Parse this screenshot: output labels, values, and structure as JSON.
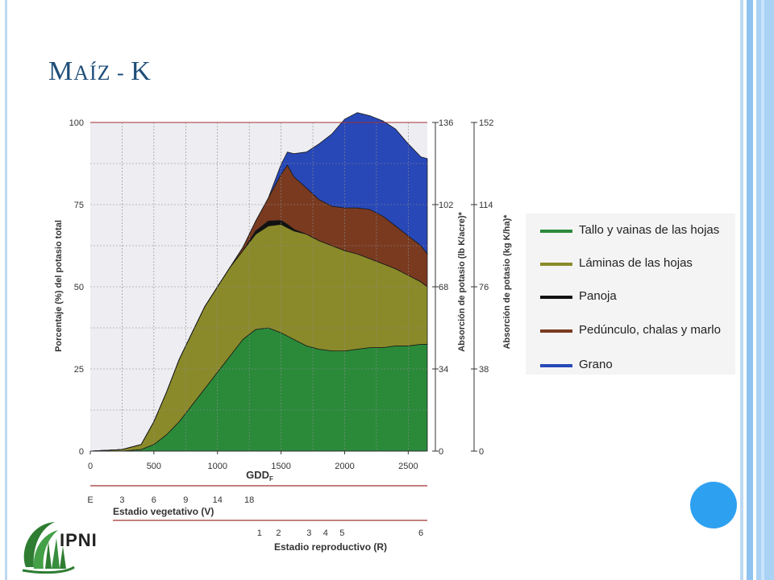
{
  "slide": {
    "title_first": "M",
    "title_sc": "AÍZ - ",
    "title_last": "K"
  },
  "chart_data": {
    "type": "area",
    "stacked": true,
    "xlabel": "GDD",
    "xlabel_sub": "F",
    "ylabel_left": "Porcentaje (%) del potasio total",
    "ylabel_right1": "Absorción de potasio (lb K/acre)*",
    "ylabel_right2": "Absorción de potasio (kg K/ha)*",
    "xlim": [
      0,
      2650
    ],
    "ylim": [
      0,
      100
    ],
    "x_ticks": [
      "0",
      "500",
      "1000",
      "1500",
      "2000",
      "2500"
    ],
    "y_ticks_left": [
      "0",
      "25",
      "50",
      "75",
      "100"
    ],
    "y_ticks_right1": [
      "0",
      "34",
      "68",
      "102",
      "136"
    ],
    "y_ticks_right2": [
      "0",
      "38",
      "76",
      "114",
      "152"
    ],
    "grid": true,
    "x": [
      0,
      250,
      400,
      500,
      600,
      700,
      800,
      900,
      1000,
      1100,
      1200,
      1300,
      1400,
      1500,
      1550,
      1600,
      1700,
      1800,
      1900,
      2000,
      2100,
      2200,
      2300,
      2400,
      2500,
      2600,
      2650
    ],
    "series": [
      {
        "name": "Tallo y vainas de las hojas",
        "color": "#2a8a3a",
        "values": [
          0,
          0,
          0.5,
          2,
          5,
          9,
          14,
          19,
          24,
          29,
          34,
          37,
          37.5,
          36,
          35,
          34,
          32,
          31,
          30.5,
          30.5,
          31,
          31.5,
          31.5,
          32,
          32,
          32.5,
          32.5
        ]
      },
      {
        "name": "Láminas de las hojas",
        "color": "#8a8a2a",
        "values": [
          0,
          0.5,
          1.5,
          7,
          13,
          19,
          22,
          25,
          26,
          27,
          27,
          29,
          31,
          33,
          33,
          33,
          34,
          33,
          32,
          30.5,
          29,
          27,
          25.5,
          23.5,
          21.5,
          19,
          17.5
        ]
      },
      {
        "name": "Panoja",
        "color": "#111111",
        "values": [
          0,
          0,
          0,
          0,
          0,
          0,
          0,
          0,
          0,
          0,
          0,
          1,
          1.5,
          1.2,
          1,
          0.5,
          0,
          0,
          0,
          0,
          0,
          0,
          0,
          0,
          0,
          0,
          0
        ]
      },
      {
        "name": "Pedúnculo, chalas y marlo",
        "color": "#7a3a20",
        "values": [
          0,
          0,
          0,
          0,
          0,
          0,
          0,
          0,
          0,
          0,
          1,
          3,
          7,
          14,
          18,
          16,
          14,
          12.5,
          12,
          13,
          14,
          15,
          14.5,
          13,
          12,
          11,
          10
        ]
      },
      {
        "name": "Grano",
        "color": "#2848b8",
        "values": [
          0,
          0,
          0,
          0,
          0,
          0,
          0,
          0,
          0,
          0,
          0,
          0,
          0,
          3,
          4,
          7,
          11,
          17,
          22,
          27,
          29,
          28.5,
          29,
          29.5,
          28,
          27,
          29
        ]
      }
    ],
    "stage_vegetative": {
      "label": "Estadio vegetativo (V)",
      "ticks": [
        {
          "label": "E",
          "x": 0
        },
        {
          "label": "3",
          "x": 250
        },
        {
          "label": "6",
          "x": 500
        },
        {
          "label": "9",
          "x": 750
        },
        {
          "label": "14",
          "x": 1000
        },
        {
          "label": "18",
          "x": 1250
        }
      ]
    },
    "stage_reproductive": {
      "label": "Estadio reproductivo (R)",
      "ticks": [
        {
          "label": "1",
          "x": 1330
        },
        {
          "label": "2",
          "x": 1480
        },
        {
          "label": "3",
          "x": 1720
        },
        {
          "label": "4",
          "x": 1850
        },
        {
          "label": "5",
          "x": 1980
        },
        {
          "label": "6",
          "x": 2600
        }
      ]
    }
  },
  "logo": {
    "text": "IPNI"
  }
}
